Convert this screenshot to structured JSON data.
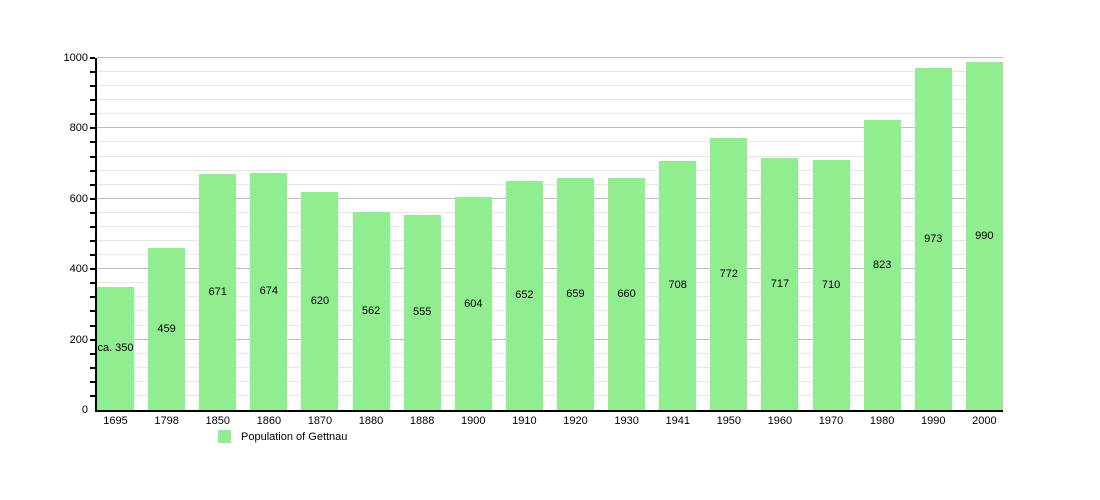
{
  "chart_data": {
    "type": "bar",
    "title": "",
    "xlabel": "",
    "ylabel": "",
    "categories": [
      "1695",
      "1798",
      "1850",
      "1860",
      "1870",
      "1880",
      "1888",
      "1900",
      "1910",
      "1920",
      "1930",
      "1941",
      "1950",
      "1960",
      "1970",
      "1980",
      "1990",
      "2000"
    ],
    "values": [
      350,
      459,
      671,
      674,
      620,
      562,
      555,
      604,
      652,
      659,
      660,
      708,
      772,
      717,
      710,
      823,
      973,
      990
    ],
    "value_labels": [
      "ca. 350",
      "459",
      "671",
      "674",
      "620",
      "562",
      "555",
      "604",
      "652",
      "659",
      "660",
      "708",
      "772",
      "717",
      "710",
      "823",
      "973",
      "990"
    ],
    "ylim": [
      0,
      1000
    ],
    "y_ticks": [
      0,
      200,
      400,
      600,
      800,
      1000
    ],
    "minor_tick_step": 40,
    "major_tick_step": 200,
    "grid": true,
    "bar_color": "#90ee90",
    "legend": {
      "label": "Population of Gettnau",
      "position": "bottom-left"
    }
  }
}
